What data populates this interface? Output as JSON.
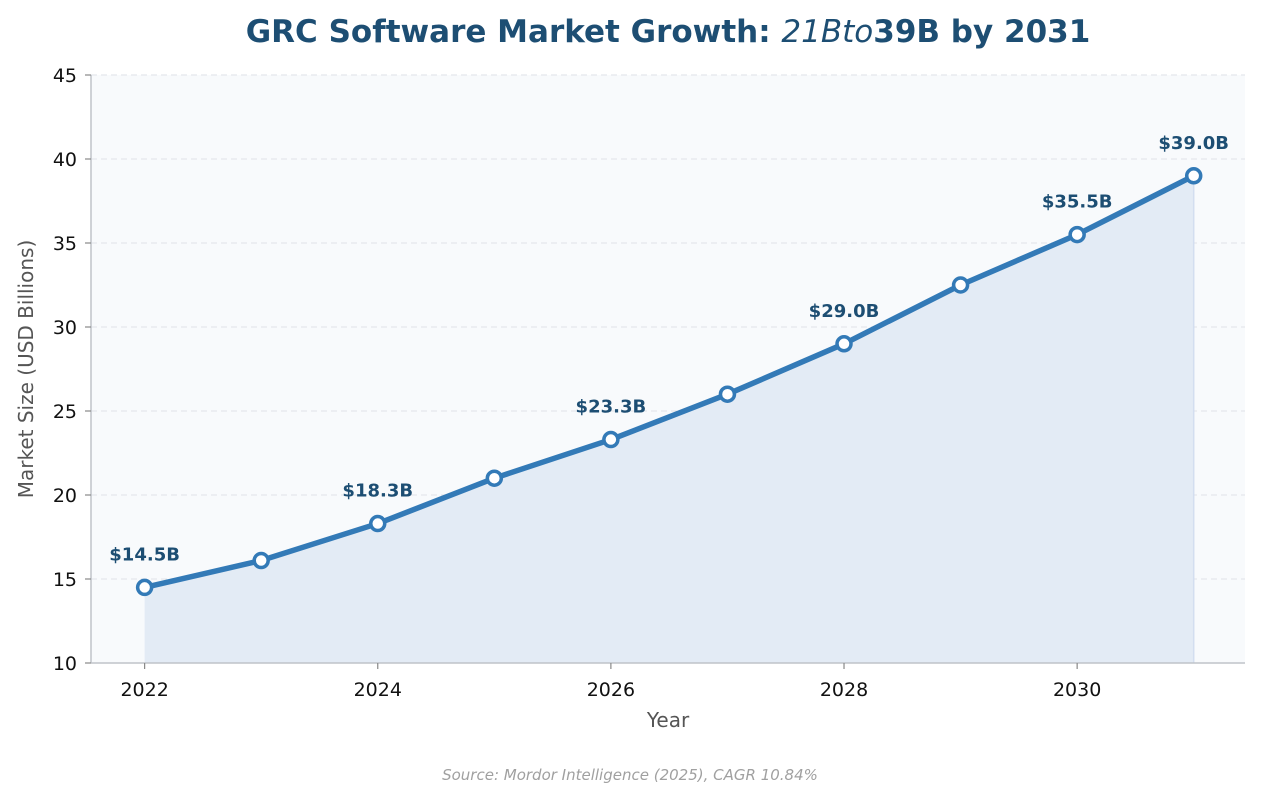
{
  "chart_data": {
    "type": "area",
    "title_parts": [
      {
        "text": "GRC Software Market Growth: ",
        "style": "bold"
      },
      {
        "text": "21Bto",
        "style": "italic"
      },
      {
        "text": "39B by 2031",
        "style": "bold"
      }
    ],
    "xlabel": "Year",
    "ylabel": "Market Size (USD Billions)",
    "x": [
      2022,
      2023,
      2024,
      2025,
      2026,
      2027,
      2028,
      2029,
      2030,
      2031
    ],
    "series": [
      {
        "values": [
          14.5,
          16.1,
          18.3,
          21.0,
          23.3,
          26.0,
          29.0,
          32.5,
          35.5,
          39.0
        ]
      }
    ],
    "xlim": [
      2021.54,
      2031.44
    ],
    "ylim": [
      10,
      45
    ],
    "xticks": [
      2022,
      2024,
      2026,
      2028,
      2030
    ],
    "yticks": [
      10,
      15,
      20,
      25,
      30,
      35,
      40,
      45
    ],
    "data_labels": [
      {
        "x": 2022,
        "y": 14.5,
        "text": "$14.5B"
      },
      {
        "x": 2024,
        "y": 18.3,
        "text": "$18.3B"
      },
      {
        "x": 2026,
        "y": 23.3,
        "text": "$23.3B"
      },
      {
        "x": 2028,
        "y": 29.0,
        "text": "$29.0B"
      },
      {
        "x": 2030,
        "y": 35.5,
        "text": "$35.5B"
      },
      {
        "x": 2031,
        "y": 39.0,
        "text": "$39.0B"
      }
    ],
    "grid": "y-dashed",
    "colors": {
      "line": "#337ab7",
      "fill": "#e3ebf5",
      "plot_bg": "#f8fafc",
      "title": "#1d4e73",
      "data_label": "#1d4e73"
    }
  },
  "source_note": "Source: Mordor Intelligence (2025), CAGR 10.84%"
}
